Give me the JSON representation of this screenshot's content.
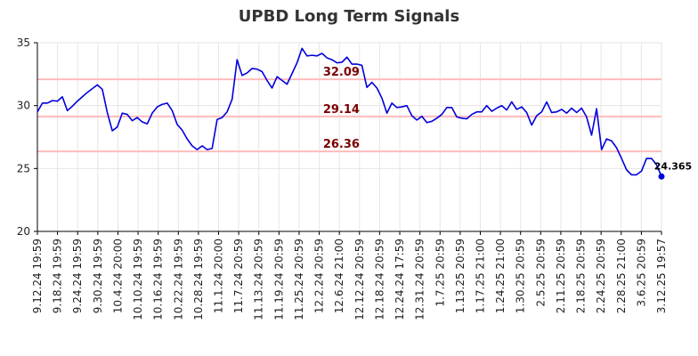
{
  "chart_data": {
    "type": "line",
    "title": "UPBD Long Term Signals",
    "xlabel": "",
    "ylabel": "",
    "ylim": [
      20,
      35
    ],
    "yticks": [
      20,
      25,
      30,
      35
    ],
    "grid": true,
    "legend": "none",
    "colors": {
      "line": "#0000dd",
      "hline": "#ffbbbb",
      "hline_label": "#7a0000",
      "grid": "#e6e6e6",
      "axis": "#000000"
    },
    "xtick_labels": [
      "9.12.24 19:59",
      "9.18.24 19:59",
      "9.24.24 19:59",
      "9.30.24 19:59",
      "10.4.24 20:00",
      "10.10.24 19:59",
      "10.16.24 19:59",
      "10.22.24 19:59",
      "10.28.24 19:59",
      "11.1.24 20:00",
      "11.7.24 20:59",
      "11.13.24 20:59",
      "11.19.24 20:59",
      "11.25.24 20:59",
      "12.2.24 20:59",
      "12.6.24 21:00",
      "12.12.24 20:59",
      "12.18.24 20:59",
      "12.24.24 17:59",
      "12.31.24 20:59",
      "1.7.25 20:59",
      "1.13.25 20:59",
      "1.17.25 21:00",
      "1.24.25 21:00",
      "1.30.25 20:59",
      "2.5.25 20:59",
      "2.11.25 20:59",
      "2.18.25 20:59",
      "2.24.25 20:59",
      "2.28.25 21:00",
      "3.6.25 20:59",
      "3.12.25 19:57"
    ],
    "hlines": [
      {
        "value": 32.09,
        "label": "32.09"
      },
      {
        "value": 29.14,
        "label": "29.14"
      },
      {
        "value": 26.36,
        "label": "26.36"
      }
    ],
    "last_point_label": "24.365",
    "series": [
      {
        "values": [
          29.5,
          30.2,
          30.2,
          30.4,
          30.35,
          30.7,
          29.6,
          29.95,
          30.35,
          30.7,
          31.05,
          31.35,
          31.65,
          31.3,
          29.45,
          28.0,
          28.3,
          29.4,
          29.3,
          28.8,
          29.05,
          28.7,
          28.55,
          29.4,
          29.9,
          30.1,
          30.2,
          29.6,
          28.5,
          28.05,
          27.35,
          26.8,
          26.5,
          26.8,
          26.5,
          26.6,
          28.9,
          29.05,
          29.5,
          30.5,
          33.65,
          32.4,
          32.6,
          32.95,
          32.9,
          32.7,
          32.0,
          31.4,
          32.3,
          32.0,
          31.7,
          32.55,
          33.4,
          34.55,
          33.95,
          34.0,
          33.95,
          34.15,
          33.8,
          33.65,
          33.4,
          33.45,
          33.85,
          33.3,
          33.3,
          33.2,
          31.45,
          31.85,
          31.4,
          30.6,
          29.4,
          30.2,
          29.85,
          29.9,
          30.0,
          29.2,
          28.85,
          29.15,
          28.65,
          28.75,
          29.0,
          29.3,
          29.85,
          29.85,
          29.1,
          29.0,
          28.95,
          29.3,
          29.5,
          29.5,
          30.0,
          29.55,
          29.8,
          30.0,
          29.65,
          30.3,
          29.7,
          29.9,
          29.45,
          28.45,
          29.2,
          29.5,
          30.3,
          29.45,
          29.5,
          29.7,
          29.4,
          29.8,
          29.45,
          29.8,
          29.1,
          27.65,
          29.75,
          26.5,
          27.35,
          27.2,
          26.65,
          25.8,
          24.9,
          24.5,
          24.5,
          24.8,
          25.8,
          25.8,
          25.3,
          24.365
        ]
      }
    ]
  }
}
